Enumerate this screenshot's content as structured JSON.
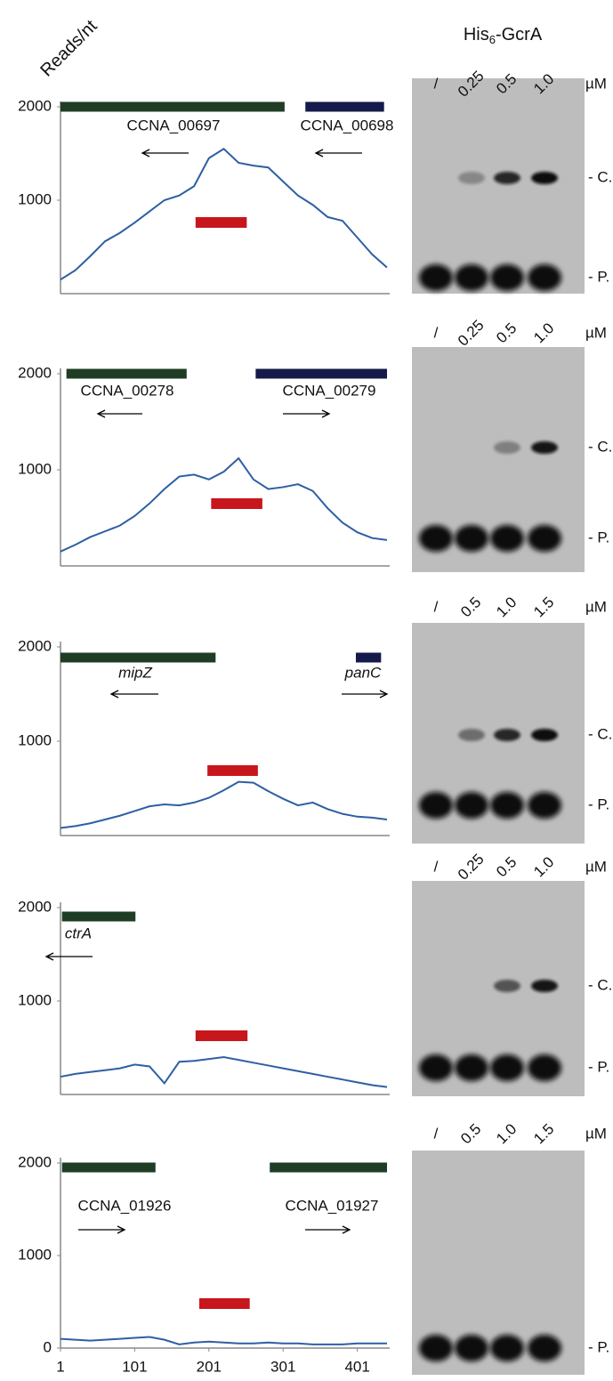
{
  "header": {
    "main": "His",
    "sub": "6",
    "rest": "-GcrA"
  },
  "y_axis_label": "Reads/nt",
  "chart_data": [
    {
      "type": "line",
      "xlim": [
        1,
        441
      ],
      "ylim": [
        0,
        2000
      ],
      "yticks": [
        1000,
        2000
      ],
      "x": [
        1,
        21,
        41,
        61,
        81,
        101,
        121,
        141,
        161,
        181,
        201,
        221,
        241,
        261,
        281,
        301,
        321,
        341,
        361,
        381,
        401,
        421,
        441
      ],
      "series": [
        {
          "color": "#2e5fa3",
          "values": [
            150,
            250,
            400,
            560,
            650,
            760,
            880,
            1000,
            1050,
            1150,
            1450,
            1550,
            1400,
            1370,
            1350,
            1200,
            1050,
            950,
            820,
            780,
            600,
            420,
            280
          ]
        }
      ],
      "genes": [
        {
          "label": "CCNA_00697",
          "start": 1,
          "end": 303,
          "color": "#1f3d24",
          "direction": "left",
          "italic": false
        },
        {
          "label": "CCNA_00698",
          "start": 331,
          "end": 437,
          "color": "#141a4a",
          "direction": "left",
          "italic": false
        }
      ],
      "probe": {
        "start": 183,
        "end": 252,
        "color": "#c8161d"
      }
    },
    {
      "type": "line",
      "xlim": [
        1,
        441
      ],
      "ylim": [
        0,
        2000
      ],
      "yticks": [
        1000,
        2000
      ],
      "x": [
        1,
        21,
        41,
        61,
        81,
        101,
        121,
        141,
        161,
        181,
        201,
        221,
        241,
        261,
        281,
        301,
        321,
        341,
        361,
        381,
        401,
        421,
        441
      ],
      "series": [
        {
          "color": "#2e5fa3",
          "values": [
            150,
            220,
            300,
            360,
            420,
            520,
            650,
            800,
            930,
            950,
            900,
            980,
            1120,
            900,
            800,
            820,
            850,
            780,
            600,
            450,
            350,
            290,
            270
          ]
        }
      ],
      "genes": [
        {
          "label": "CCNA_00278",
          "start": 9,
          "end": 171,
          "color": "#1f3d24",
          "direction": "left",
          "italic": false
        },
        {
          "label": "CCNA_00279",
          "start": 264,
          "end": 441,
          "color": "#141a4a",
          "direction": "right",
          "italic": false
        }
      ],
      "probe": {
        "start": 204,
        "end": 273,
        "color": "#c8161d"
      }
    },
    {
      "type": "line",
      "xlim": [
        1,
        441
      ],
      "ylim": [
        0,
        2000
      ],
      "yticks": [
        1000,
        2000
      ],
      "x": [
        1,
        21,
        41,
        61,
        81,
        101,
        121,
        141,
        161,
        181,
        201,
        221,
        241,
        261,
        281,
        301,
        321,
        341,
        361,
        381,
        401,
        421,
        441
      ],
      "series": [
        {
          "color": "#2e5fa3",
          "values": [
            80,
            100,
            130,
            170,
            210,
            260,
            310,
            330,
            320,
            350,
            400,
            480,
            570,
            560,
            470,
            390,
            320,
            350,
            280,
            230,
            200,
            190,
            170
          ]
        }
      ],
      "genes": [
        {
          "label": "mipZ",
          "start": 1,
          "end": 210,
          "color": "#1f3d24",
          "direction": "left",
          "italic": true
        },
        {
          "label": "panC",
          "start": 399,
          "end": 433,
          "color": "#141a4a",
          "direction": "right",
          "italic": true
        }
      ],
      "probe": {
        "start": 199,
        "end": 267,
        "color": "#c8161d"
      }
    },
    {
      "type": "line",
      "xlim": [
        1,
        441
      ],
      "ylim": [
        0,
        2000
      ],
      "yticks": [
        1000,
        2000
      ],
      "x": [
        1,
        21,
        41,
        61,
        81,
        101,
        121,
        141,
        161,
        181,
        201,
        221,
        241,
        261,
        281,
        301,
        321,
        341,
        361,
        381,
        401,
        421,
        441
      ],
      "series": [
        {
          "color": "#2e5fa3",
          "values": [
            190,
            220,
            240,
            260,
            280,
            320,
            300,
            120,
            350,
            360,
            380,
            400,
            370,
            340,
            310,
            280,
            250,
            220,
            190,
            160,
            130,
            100,
            80
          ]
        }
      ],
      "genes": [
        {
          "label": "ctrA",
          "start": 3,
          "end": 102,
          "color": "#1f3d24",
          "direction": "left",
          "italic": true
        }
      ],
      "probe": {
        "start": 183,
        "end": 253,
        "color": "#c8161d"
      }
    },
    {
      "type": "line",
      "xlim": [
        1,
        441
      ],
      "ylim": [
        0,
        2000
      ],
      "yticks": [
        0,
        1000,
        2000
      ],
      "xticks": [
        1,
        101,
        201,
        301,
        401
      ],
      "x": [
        1,
        21,
        41,
        61,
        81,
        101,
        121,
        141,
        161,
        181,
        201,
        221,
        241,
        261,
        281,
        301,
        321,
        341,
        361,
        381,
        401,
        421,
        441
      ],
      "series": [
        {
          "color": "#2e5fa3",
          "values": [
            100,
            90,
            80,
            90,
            100,
            110,
            120,
            90,
            40,
            60,
            70,
            60,
            50,
            50,
            60,
            50,
            50,
            40,
            40,
            40,
            50,
            50,
            50
          ]
        }
      ],
      "genes": [
        {
          "label": "CCNA_01926",
          "start": 3,
          "end": 129,
          "color": "#1f3d24",
          "direction": "right",
          "italic": false
        },
        {
          "label": "CCNA_01927",
          "start": 283,
          "end": 441,
          "color": "#1f3d24",
          "direction": "right",
          "italic": false
        }
      ],
      "probe": {
        "start": 188,
        "end": 256,
        "color": "#c8161d"
      }
    }
  ],
  "gels": [
    {
      "lanes": [
        "/",
        "0.25",
        "0.5",
        "1.0"
      ],
      "unit": "µM",
      "bands": [
        "- C.",
        "- P."
      ]
    },
    {
      "lanes": [
        "/",
        "0.25",
        "0.5",
        "1.0"
      ],
      "unit": "µM",
      "bands": [
        "- C.",
        "- P."
      ]
    },
    {
      "lanes": [
        "/",
        "0.5",
        "1.0",
        "1.5"
      ],
      "unit": "µM",
      "bands": [
        "- C.",
        "- P."
      ]
    },
    {
      "lanes": [
        "/",
        "0.25",
        "0.5",
        "1.0"
      ],
      "unit": "µM",
      "bands": [
        "- C.",
        "- P."
      ]
    },
    {
      "lanes": [
        "/",
        "0.5",
        "1.0",
        "1.5"
      ],
      "unit": "µM",
      "bands": [
        "- P."
      ]
    }
  ]
}
